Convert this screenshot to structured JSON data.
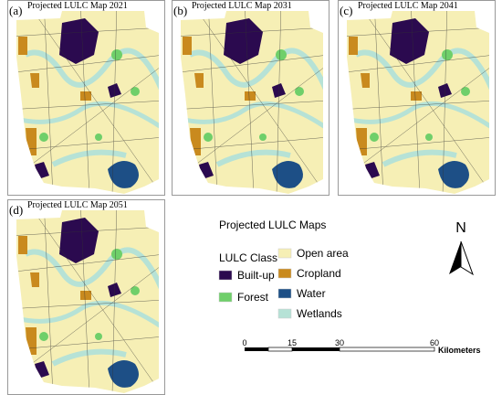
{
  "panels": [
    {
      "tag": "(a)",
      "title": "Projected LULC Map 2021"
    },
    {
      "tag": "(b)",
      "title": "Projected LULC Map 2031"
    },
    {
      "tag": "(c)",
      "title": "Projected LULC Map 2041"
    },
    {
      "tag": "(d)",
      "title": "Projected LULC Map 2051"
    }
  ],
  "legend": {
    "title": "Projected LULC Maps",
    "class_title": "LULC Class",
    "items": [
      {
        "label": "Built-up",
        "color": "#2b0a4f"
      },
      {
        "label": "Forest",
        "color": "#6fcf6a"
      },
      {
        "label": "Open area",
        "color": "#f6efb5"
      },
      {
        "label": "Cropland",
        "color": "#c98a1e"
      },
      {
        "label": "Water",
        "color": "#1d4f86"
      },
      {
        "label": "Wetlands",
        "color": "#b6e2d6"
      }
    ]
  },
  "north": "N",
  "scale_bar": {
    "labels": [
      "0",
      "15",
      "30",
      "60"
    ],
    "unit": "Kilometers"
  }
}
